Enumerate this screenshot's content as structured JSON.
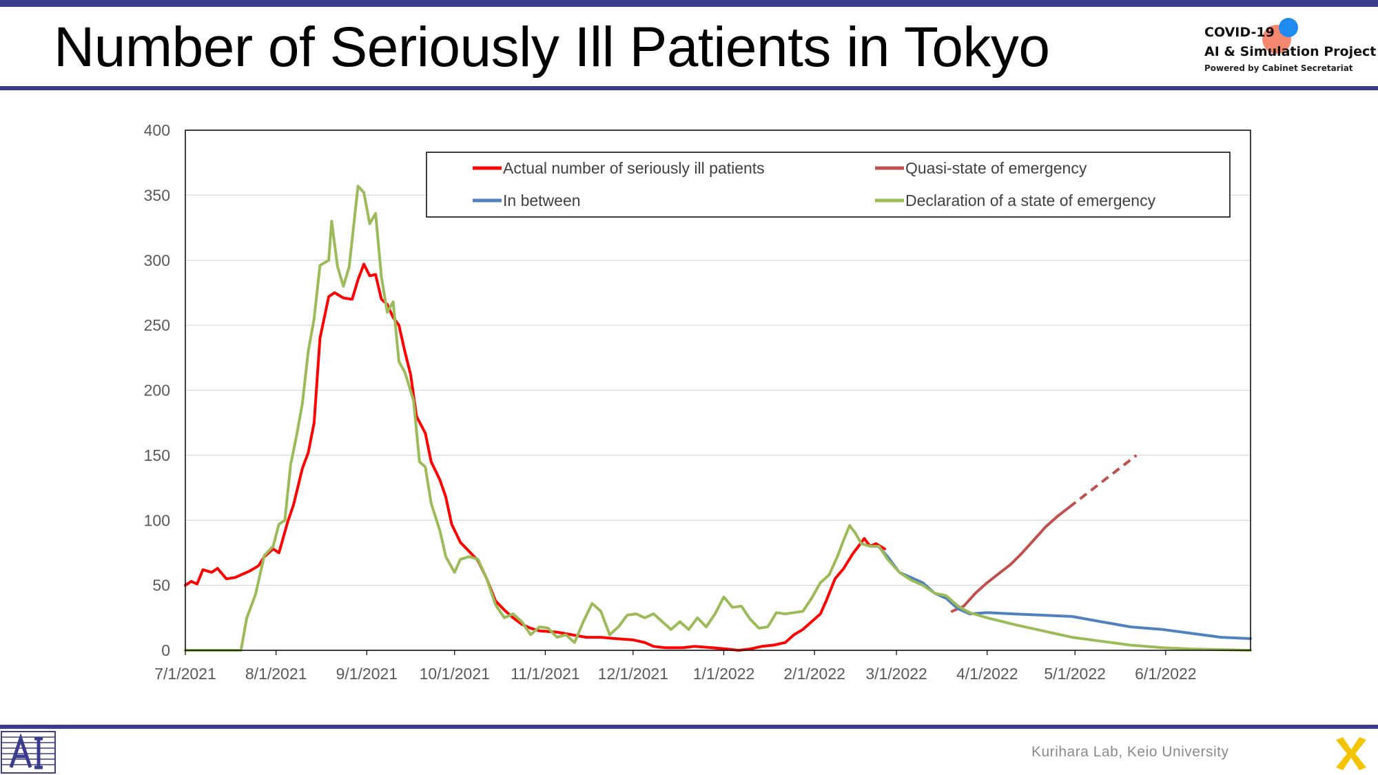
{
  "slide": {
    "title": "Number of Seriously Ill Patients in Tokyo",
    "footer": "Kurihara Lab, Keio University",
    "accent_color": "#3c3c8c",
    "logo": {
      "line1": "COVID-19",
      "line2": "AI & Simulation Project",
      "line3": "Powered by Cabinet Secretariat",
      "icon": "two-dots-logo-icon"
    },
    "footer_left_icon": "ai-lab-logo-icon",
    "footer_right_icon": "yellow-x-logo-icon"
  },
  "chart_data": {
    "type": "line",
    "title": "",
    "xlabel": "",
    "ylabel": "",
    "ylim": [
      0,
      400
    ],
    "yticks": [
      0,
      50,
      100,
      150,
      200,
      250,
      300,
      350,
      400
    ],
    "xlim": [
      "2021-07-01",
      "2022-06-30"
    ],
    "xticks": [
      {
        "date": "2021-07-01",
        "label": "7/1/2021"
      },
      {
        "date": "2021-08-01",
        "label": "8/1/2021"
      },
      {
        "date": "2021-09-01",
        "label": "9/1/2021"
      },
      {
        "date": "2021-10-01",
        "label": "10/1/2021"
      },
      {
        "date": "2021-11-01",
        "label": "11/1/2021"
      },
      {
        "date": "2021-12-01",
        "label": "12/1/2021"
      },
      {
        "date": "2022-01-01",
        "label": "1/1/2022"
      },
      {
        "date": "2022-02-01",
        "label": "2/1/2022"
      },
      {
        "date": "2022-03-01",
        "label": "3/1/2022"
      },
      {
        "date": "2022-04-01",
        "label": "4/1/2022"
      },
      {
        "date": "2022-05-01",
        "label": "5/1/2022"
      },
      {
        "date": "2022-06-01",
        "label": "6/1/2022"
      }
    ],
    "grid": "horizontal",
    "legend_position": "top-right",
    "series": [
      {
        "name": "Actual number of seriously ill patients",
        "color": "#ff0000",
        "points": [
          [
            "2021-07-01",
            50
          ],
          [
            "2021-07-03",
            53
          ],
          [
            "2021-07-05",
            51
          ],
          [
            "2021-07-07",
            62
          ],
          [
            "2021-07-10",
            60
          ],
          [
            "2021-07-12",
            63
          ],
          [
            "2021-07-15",
            55
          ],
          [
            "2021-07-18",
            56
          ],
          [
            "2021-07-20",
            58
          ],
          [
            "2021-07-23",
            61
          ],
          [
            "2021-07-26",
            65
          ],
          [
            "2021-07-28",
            72
          ],
          [
            "2021-07-31",
            78
          ],
          [
            "2021-08-02",
            75
          ],
          [
            "2021-08-05",
            99
          ],
          [
            "2021-08-07",
            112
          ],
          [
            "2021-08-10",
            140
          ],
          [
            "2021-08-12",
            152
          ],
          [
            "2021-08-14",
            175
          ],
          [
            "2021-08-16",
            240
          ],
          [
            "2021-08-19",
            272
          ],
          [
            "2021-08-21",
            275
          ],
          [
            "2021-08-24",
            271
          ],
          [
            "2021-08-27",
            270
          ],
          [
            "2021-08-29",
            285
          ],
          [
            "2021-08-31",
            297
          ],
          [
            "2021-09-02",
            288
          ],
          [
            "2021-09-04",
            289
          ],
          [
            "2021-09-06",
            270
          ],
          [
            "2021-09-08",
            266
          ],
          [
            "2021-09-10",
            256
          ],
          [
            "2021-09-12",
            250
          ],
          [
            "2021-09-14",
            230
          ],
          [
            "2021-09-16",
            212
          ],
          [
            "2021-09-18",
            180
          ],
          [
            "2021-09-21",
            167
          ],
          [
            "2021-09-23",
            145
          ],
          [
            "2021-09-26",
            131
          ],
          [
            "2021-09-28",
            118
          ],
          [
            "2021-09-30",
            97
          ],
          [
            "2021-10-03",
            83
          ],
          [
            "2021-10-06",
            76
          ],
          [
            "2021-10-09",
            69
          ],
          [
            "2021-10-12",
            55
          ],
          [
            "2021-10-15",
            38
          ],
          [
            "2021-10-18",
            31
          ],
          [
            "2021-10-21",
            25
          ],
          [
            "2021-10-24",
            20
          ],
          [
            "2021-10-27",
            17
          ],
          [
            "2021-10-30",
            15
          ],
          [
            "2021-11-05",
            14
          ],
          [
            "2021-11-10",
            12
          ],
          [
            "2021-11-15",
            10
          ],
          [
            "2021-11-20",
            10
          ],
          [
            "2021-11-25",
            9
          ],
          [
            "2021-12-01",
            8
          ],
          [
            "2021-12-05",
            6
          ],
          [
            "2021-12-08",
            3
          ],
          [
            "2021-12-12",
            2
          ],
          [
            "2021-12-18",
            2
          ],
          [
            "2021-12-22",
            3
          ],
          [
            "2021-12-28",
            2
          ],
          [
            "2022-01-02",
            1
          ],
          [
            "2022-01-06",
            0
          ],
          [
            "2022-01-10",
            1
          ],
          [
            "2022-01-14",
            3
          ],
          [
            "2022-01-18",
            4
          ],
          [
            "2022-01-22",
            6
          ],
          [
            "2022-01-25",
            12
          ],
          [
            "2022-01-28",
            16
          ],
          [
            "2022-01-31",
            22
          ],
          [
            "2022-02-03",
            28
          ],
          [
            "2022-02-05",
            38
          ],
          [
            "2022-02-08",
            55
          ],
          [
            "2022-02-11",
            63
          ],
          [
            "2022-02-14",
            74
          ],
          [
            "2022-02-16",
            80
          ],
          [
            "2022-02-18",
            86
          ],
          [
            "2022-02-20",
            80
          ],
          [
            "2022-02-22",
            82
          ],
          [
            "2022-02-25",
            78
          ]
        ]
      },
      {
        "name": "Quasi-state of emergency",
        "color": "#c0504d",
        "points": [
          [
            "2022-03-20",
            30
          ],
          [
            "2022-03-24",
            34
          ],
          [
            "2022-03-28",
            44
          ],
          [
            "2022-04-01",
            52
          ],
          [
            "2022-04-05",
            59
          ],
          [
            "2022-04-09",
            66
          ],
          [
            "2022-04-13",
            75
          ],
          [
            "2022-04-17",
            85
          ],
          [
            "2022-04-21",
            95
          ],
          [
            "2022-04-25",
            103
          ],
          [
            "2022-04-29",
            110
          ]
        ],
        "projection": [
          [
            "2022-04-29",
            110
          ],
          [
            "2022-05-22",
            150
          ]
        ]
      },
      {
        "name": "In between",
        "color": "#4f81bd",
        "points": [
          [
            "2022-02-22",
            82
          ],
          [
            "2022-02-26",
            72
          ],
          [
            "2022-03-02",
            60
          ],
          [
            "2022-03-06",
            56
          ],
          [
            "2022-03-10",
            52
          ],
          [
            "2022-03-14",
            44
          ],
          [
            "2022-03-18",
            40
          ],
          [
            "2022-03-22",
            32
          ],
          [
            "2022-03-26",
            28
          ],
          [
            "2022-04-01",
            29
          ],
          [
            "2022-04-10",
            28
          ],
          [
            "2022-04-20",
            27
          ],
          [
            "2022-04-30",
            26
          ],
          [
            "2022-05-10",
            22
          ],
          [
            "2022-05-20",
            18
          ],
          [
            "2022-05-31",
            16
          ],
          [
            "2022-06-10",
            13
          ],
          [
            "2022-06-20",
            10
          ],
          [
            "2022-06-30",
            9
          ]
        ]
      },
      {
        "name": "Declaration of a state of emergency",
        "color": "#9bbb59",
        "points": [
          [
            "2021-07-01",
            0
          ],
          [
            "2021-07-18",
            0
          ],
          [
            "2021-07-20",
            0
          ],
          [
            "2021-07-22",
            25
          ],
          [
            "2021-07-25",
            43
          ],
          [
            "2021-07-28",
            73
          ],
          [
            "2021-07-31",
            80
          ],
          [
            "2021-08-02",
            97
          ],
          [
            "2021-08-04",
            100
          ],
          [
            "2021-08-06",
            143
          ],
          [
            "2021-08-08",
            165
          ],
          [
            "2021-08-10",
            190
          ],
          [
            "2021-08-12",
            230
          ],
          [
            "2021-08-14",
            255
          ],
          [
            "2021-08-16",
            296
          ],
          [
            "2021-08-19",
            300
          ],
          [
            "2021-08-20",
            330
          ],
          [
            "2021-08-22",
            295
          ],
          [
            "2021-08-24",
            280
          ],
          [
            "2021-08-26",
            295
          ],
          [
            "2021-08-29",
            357
          ],
          [
            "2021-08-31",
            352
          ],
          [
            "2021-09-02",
            328
          ],
          [
            "2021-09-04",
            336
          ],
          [
            "2021-09-06",
            287
          ],
          [
            "2021-09-08",
            260
          ],
          [
            "2021-09-10",
            268
          ],
          [
            "2021-09-12",
            222
          ],
          [
            "2021-09-14",
            214
          ],
          [
            "2021-09-17",
            192
          ],
          [
            "2021-09-19",
            145
          ],
          [
            "2021-09-21",
            141
          ],
          [
            "2021-09-23",
            113
          ],
          [
            "2021-09-26",
            92
          ],
          [
            "2021-09-28",
            72
          ],
          [
            "2021-10-01",
            60
          ],
          [
            "2021-10-03",
            70
          ],
          [
            "2021-10-06",
            72
          ],
          [
            "2021-10-09",
            70
          ],
          [
            "2021-10-12",
            55
          ],
          [
            "2021-10-15",
            35
          ],
          [
            "2021-10-18",
            25
          ],
          [
            "2021-10-21",
            28
          ],
          [
            "2021-10-24",
            22
          ],
          [
            "2021-10-27",
            12
          ],
          [
            "2021-10-30",
            18
          ],
          [
            "2021-11-02",
            17
          ],
          [
            "2021-11-05",
            10
          ],
          [
            "2021-11-08",
            12
          ],
          [
            "2021-11-11",
            6
          ],
          [
            "2021-11-14",
            22
          ],
          [
            "2021-11-17",
            36
          ],
          [
            "2021-11-20",
            30
          ],
          [
            "2021-11-23",
            12
          ],
          [
            "2021-11-26",
            18
          ],
          [
            "2021-11-29",
            27
          ],
          [
            "2021-12-02",
            28
          ],
          [
            "2021-12-05",
            25
          ],
          [
            "2021-12-08",
            28
          ],
          [
            "2021-12-11",
            22
          ],
          [
            "2021-12-14",
            16
          ],
          [
            "2021-12-17",
            22
          ],
          [
            "2021-12-20",
            16
          ],
          [
            "2021-12-23",
            25
          ],
          [
            "2021-12-26",
            18
          ],
          [
            "2021-12-29",
            28
          ],
          [
            "2022-01-01",
            41
          ],
          [
            "2022-01-04",
            33
          ],
          [
            "2022-01-07",
            34
          ],
          [
            "2022-01-10",
            24
          ],
          [
            "2022-01-13",
            17
          ],
          [
            "2022-01-16",
            18
          ],
          [
            "2022-01-19",
            29
          ],
          [
            "2022-01-22",
            28
          ],
          [
            "2022-01-25",
            29
          ],
          [
            "2022-01-28",
            30
          ],
          [
            "2022-01-31",
            40
          ],
          [
            "2022-02-03",
            52
          ],
          [
            "2022-02-06",
            58
          ],
          [
            "2022-02-09",
            73
          ],
          [
            "2022-02-11",
            85
          ],
          [
            "2022-02-13",
            96
          ],
          [
            "2022-02-15",
            90
          ],
          [
            "2022-02-17",
            82
          ],
          [
            "2022-02-20",
            80
          ],
          [
            "2022-02-23",
            80
          ],
          [
            "2022-02-26",
            70
          ],
          [
            "2022-03-02",
            60
          ],
          [
            "2022-03-06",
            54
          ],
          [
            "2022-03-10",
            50
          ],
          [
            "2022-03-14",
            44
          ],
          [
            "2022-03-18",
            42
          ],
          [
            "2022-03-22",
            34
          ],
          [
            "2022-03-26",
            29
          ],
          [
            "2022-04-01",
            25
          ],
          [
            "2022-04-10",
            20
          ],
          [
            "2022-04-20",
            15
          ],
          [
            "2022-04-30",
            10
          ],
          [
            "2022-05-10",
            7
          ],
          [
            "2022-05-20",
            4
          ],
          [
            "2022-05-31",
            2
          ],
          [
            "2022-06-10",
            1
          ],
          [
            "2022-06-30",
            0
          ]
        ]
      }
    ]
  }
}
